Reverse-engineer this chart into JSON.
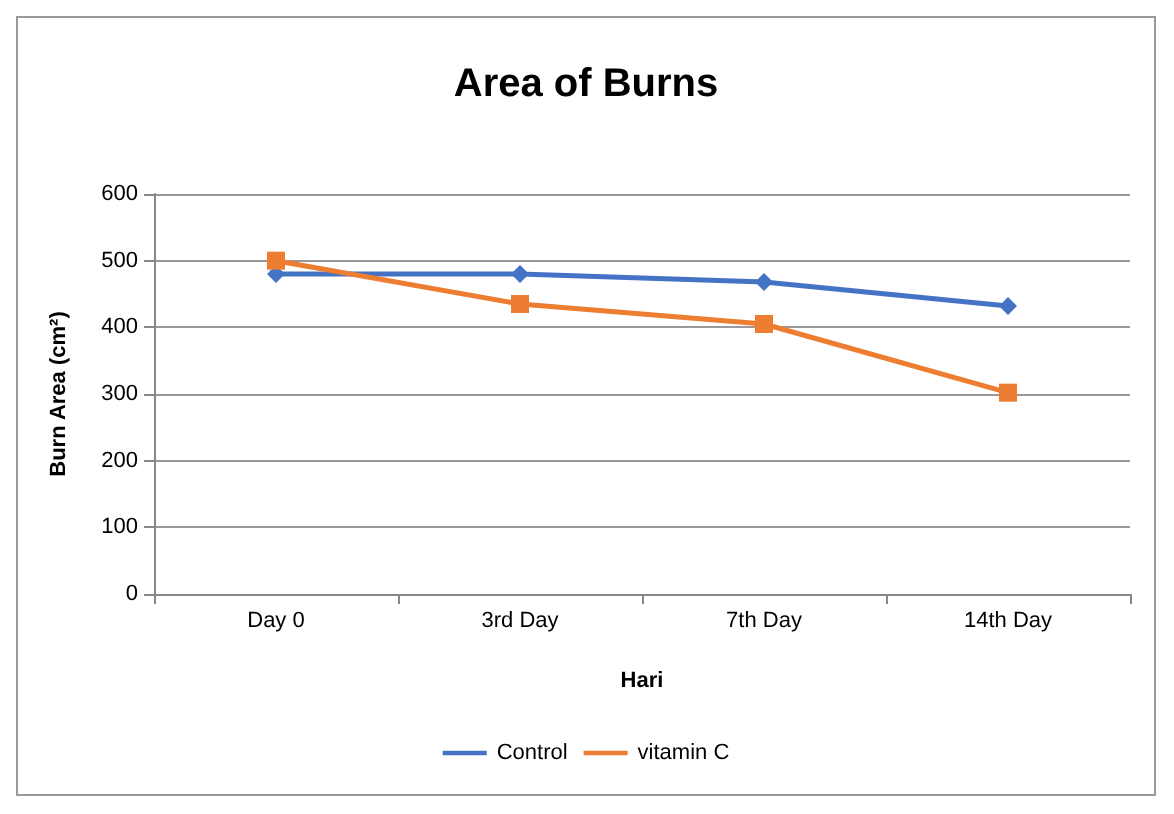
{
  "chart_data": {
    "type": "line",
    "title": "Area of Burns",
    "xlabel": "Hari",
    "ylabel": "Burn Area (cm²)",
    "categories": [
      "Day 0",
      "3rd Day",
      "7th Day",
      "14th Day"
    ],
    "series": [
      {
        "name": "Control",
        "color": "#4472c4",
        "marker": "diamond",
        "values": [
          480,
          480,
          468,
          432
        ]
      },
      {
        "name": "vitamin C",
        "color": "#ed7d31",
        "marker": "square",
        "values": [
          500,
          435,
          405,
          302
        ]
      }
    ],
    "ylim": [
      0,
      600
    ],
    "yticks": [
      0,
      100,
      200,
      300,
      400,
      500,
      600
    ],
    "grid": "y",
    "legend": "bottom",
    "line_style": "solid"
  }
}
